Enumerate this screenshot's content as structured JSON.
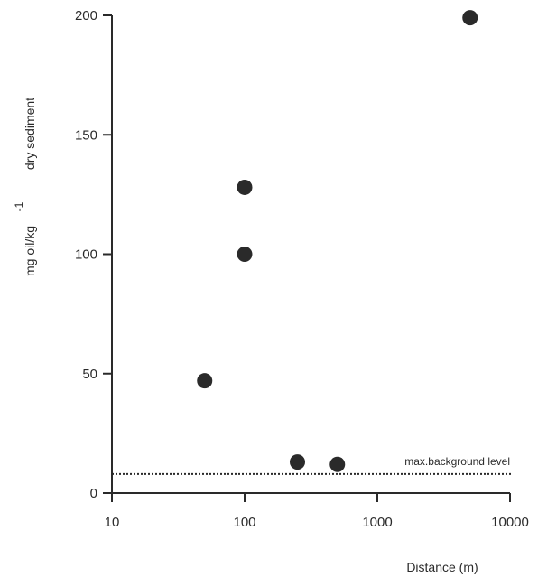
{
  "chart_data": {
    "type": "scatter",
    "title": "",
    "xlabel": "Distance  (m)",
    "ylabel": {
      "part1": "mg oil/kg",
      "exponent": "-1",
      "part2": "dry sediment"
    },
    "x_scale": "log",
    "xlim": [
      10,
      10000
    ],
    "ylim": [
      0,
      200
    ],
    "x_ticks": [
      10,
      100,
      1000,
      10000
    ],
    "x_tick_labels": [
      "10",
      "100",
      "1000",
      "10000"
    ],
    "y_ticks": [
      0,
      50,
      100,
      150,
      200
    ],
    "y_tick_labels": [
      "0",
      "50",
      "100",
      "150",
      "200"
    ],
    "grid": false,
    "points": [
      {
        "x": 50,
        "y": 47
      },
      {
        "x": 100,
        "y": 100
      },
      {
        "x": 100,
        "y": 128
      },
      {
        "x": 250,
        "y": 13
      },
      {
        "x": 500,
        "y": 12
      },
      {
        "x": 5000,
        "y": 199
      }
    ],
    "reference_line": {
      "y": 8,
      "style": "dotted",
      "label": "max.background level"
    },
    "colors": {
      "axis": "#2a2a2a",
      "marker": "#2a2a2a"
    }
  }
}
